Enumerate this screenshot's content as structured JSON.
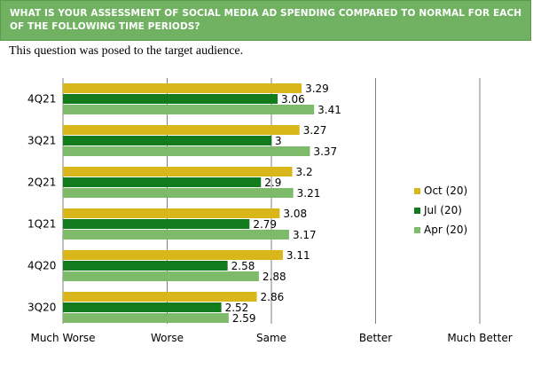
{
  "header": {
    "title": "WHAT IS YOUR ASSESSMENT OF SOCIAL MEDIA AD SPENDING COMPARED TO NORMAL FOR EACH OF THE FOLLOWING TIME PERIODS?"
  },
  "subtitle": "This question was posed to the target audience.",
  "colors": {
    "oct": "#d9b61a",
    "jul": "#127b1c",
    "apr": "#7dbb6a",
    "grid": "#808080",
    "header_bg": "#71b262"
  },
  "chart_data": {
    "type": "bar",
    "orientation": "horizontal",
    "categories": [
      "4Q21",
      "3Q21",
      "2Q21",
      "1Q21",
      "4Q20",
      "3Q20"
    ],
    "series": [
      {
        "name": "Oct (20)",
        "values": [
          3.29,
          3.27,
          3.2,
          3.08,
          3.11,
          2.86
        ]
      },
      {
        "name": "Jul (20)",
        "values": [
          3.06,
          3,
          2.9,
          2.79,
          2.58,
          2.52
        ]
      },
      {
        "name": "Apr (20)",
        "values": [
          3.41,
          3.37,
          3.21,
          3.17,
          2.88,
          2.59
        ]
      }
    ],
    "x_ticks": [
      {
        "value": 1,
        "label": "Much Worse"
      },
      {
        "value": 2,
        "label": "Worse"
      },
      {
        "value": 3,
        "label": "Same"
      },
      {
        "value": 4,
        "label": "Better"
      },
      {
        "value": 5,
        "label": "Much Better"
      }
    ],
    "xlim": [
      1,
      5
    ],
    "grid": "vertical",
    "legend_position": "right"
  }
}
